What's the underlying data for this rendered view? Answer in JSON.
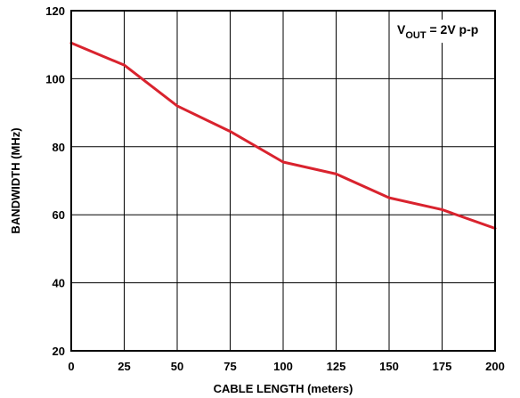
{
  "chart_data": {
    "type": "line",
    "title": "",
    "xlabel": "CABLE LENGTH (meters)",
    "ylabel": "BANDWIDTH (MHz)",
    "xlim": [
      0,
      200
    ],
    "ylim": [
      20,
      120
    ],
    "xticks": [
      0,
      25,
      50,
      75,
      100,
      125,
      150,
      175,
      200
    ],
    "yticks": [
      20,
      40,
      60,
      80,
      100,
      120
    ],
    "grid": true,
    "annotation": {
      "main": "V",
      "sub": "OUT",
      "rest": " = 2V p-p"
    },
    "series": [
      {
        "color": "#d9232e",
        "x": [
          0,
          25,
          50,
          75,
          100,
          125,
          150,
          175,
          200
        ],
        "y": [
          110.5,
          104,
          92,
          84.5,
          75.5,
          72,
          65,
          61.5,
          56
        ]
      }
    ]
  }
}
